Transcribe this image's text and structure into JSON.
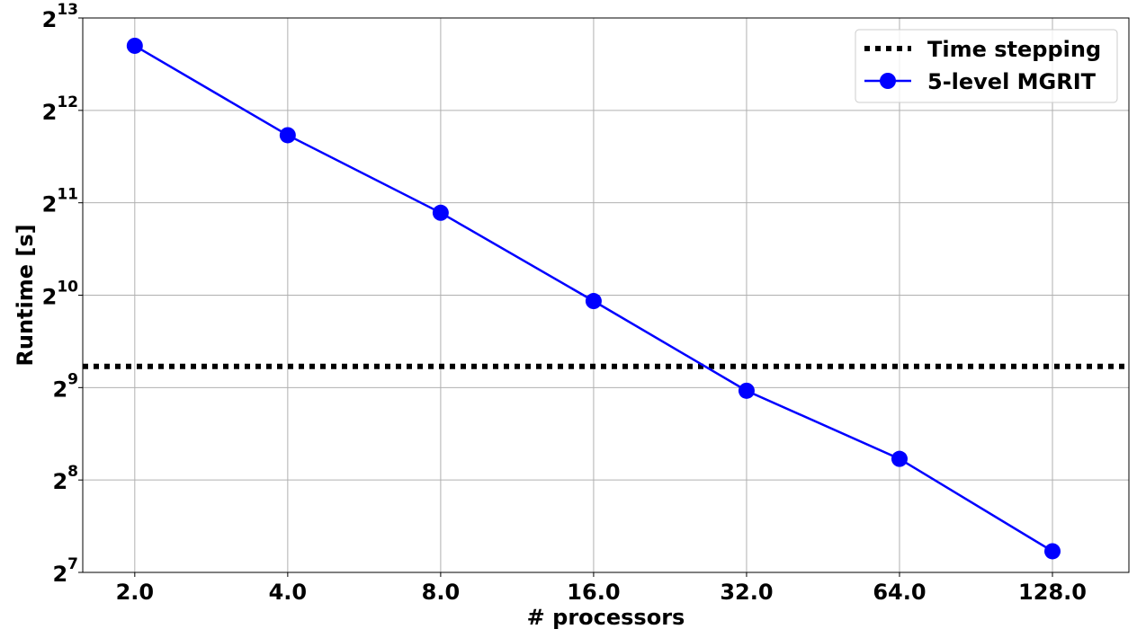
{
  "chart_data": {
    "type": "line",
    "title": "",
    "xlabel": "# processors",
    "ylabel": "Runtime [s]",
    "x_scale": "log2",
    "y_scale": "log2",
    "xlim": [
      1.58,
      181
    ],
    "ylim": [
      128,
      8192
    ],
    "x_ticks": [
      2,
      4,
      8,
      16,
      32,
      64,
      128
    ],
    "x_tick_labels": [
      "2.0",
      "4.0",
      "8.0",
      "16.0",
      "32.0",
      "64.0",
      "128.0"
    ],
    "y_ticks": [
      128,
      256,
      512,
      1024,
      2048,
      4096,
      8192
    ],
    "y_tick_labels": [
      {
        "base": "2",
        "exp": "7"
      },
      {
        "base": "2",
        "exp": "8"
      },
      {
        "base": "2",
        "exp": "9"
      },
      {
        "base": "2",
        "exp": "10"
      },
      {
        "base": "2",
        "exp": "11"
      },
      {
        "base": "2",
        "exp": "12"
      },
      {
        "base": "2",
        "exp": "13"
      }
    ],
    "grid": true,
    "legend_position": "top-right",
    "series": [
      {
        "name": "Time stepping",
        "style": "dotted",
        "color": "#000000",
        "y_constant": 600
      },
      {
        "name": "5-level MGRIT",
        "style": "line-marker",
        "color": "#0000ff",
        "x": [
          2,
          4,
          8,
          16,
          32,
          64,
          128
        ],
        "y": [
          6650,
          3400,
          1900,
          980,
          500,
          300,
          150
        ]
      }
    ]
  }
}
